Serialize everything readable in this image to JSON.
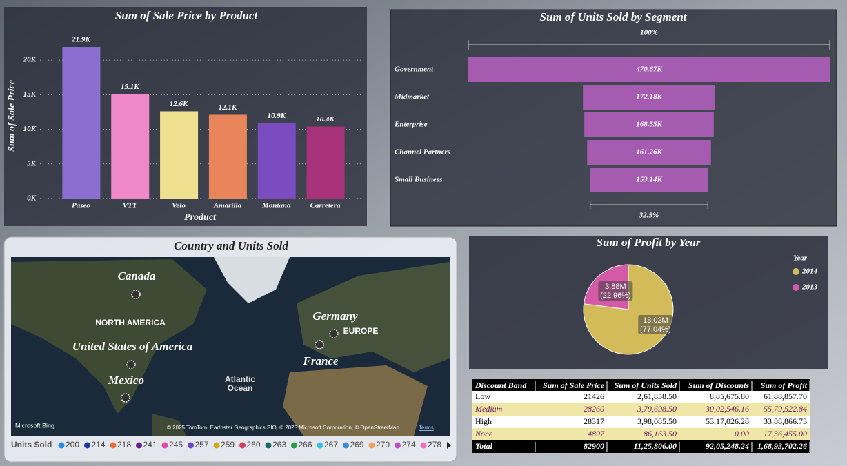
{
  "chart_data": [
    {
      "type": "bar",
      "title": "Sum of Sale Price by Product",
      "x_label": "Product",
      "y_label": "Sum of Sale Price",
      "categories": [
        "Paseo",
        "VTT",
        "Velo",
        "Amarilla",
        "Montana",
        "Carretera"
      ],
      "values": [
        21900,
        15100,
        12600,
        12100,
        10900,
        10400
      ],
      "value_labels": [
        "21.9K",
        "15.1K",
        "12.6K",
        "12.1K",
        "10.9K",
        "10.4K"
      ],
      "colors": [
        "#8b6fd0",
        "#ee88c8",
        "#efe08f",
        "#e8855a",
        "#7a4cc0",
        "#a8327a"
      ],
      "ylim": [
        0,
        23000
      ],
      "yticks": [
        {
          "value": 0,
          "label": "0K"
        },
        {
          "value": 5000,
          "label": "5K"
        },
        {
          "value": 10000,
          "label": "10K"
        },
        {
          "value": 15000,
          "label": "15K"
        },
        {
          "value": 20000,
          "label": "20K"
        }
      ],
      "grid": true
    },
    {
      "type": "funnel",
      "title": "Sum of Units Sold by Segment",
      "categories": [
        "Government",
        "Midmarket",
        "Enterprise",
        "Channel Partners",
        "Small Business"
      ],
      "values": [
        470670,
        172180,
        168550,
        161260,
        153140
      ],
      "value_labels": [
        "470.67K",
        "172.18K",
        "168.55K",
        "161.26K",
        "153.14K"
      ],
      "top_label": "100%",
      "bottom_label": "32.5%",
      "color": "#a55cb0"
    },
    {
      "type": "pie",
      "title": "Sum of Profit by Year",
      "legend_title": "Year",
      "categories": [
        "2014",
        "2013"
      ],
      "values": [
        13020000,
        3880000
      ],
      "value_labels": [
        "13.02M",
        "3.88M"
      ],
      "percents": [
        77.04,
        22.96
      ],
      "percent_labels": [
        "(77.04%)",
        "(22.96%)"
      ],
      "colors": [
        "#d4bb5a",
        "#d45aa8"
      ]
    }
  ],
  "map": {
    "title": "Country and Units Sold",
    "places": [
      "Canada",
      "United States of America",
      "Mexico",
      "Germany",
      "France"
    ],
    "regions": [
      "NORTH AMERICA",
      "EUROPE",
      "Atlantic",
      "Ocean"
    ],
    "provider": "Microsoft Bing",
    "attribution": "© 2025 TomTom, Earthstar Geographics SIO, © 2025 Microsoft Corporation, © OpenStreetMap",
    "terms": "Terms",
    "legend_title": "Units Sold",
    "legend": [
      {
        "value": 200,
        "color": "#2a8cf0"
      },
      {
        "value": 214,
        "color": "#1a3aa0"
      },
      {
        "value": 218,
        "color": "#e8703a"
      },
      {
        "value": 241,
        "color": "#6a1a8a"
      },
      {
        "value": 245,
        "color": "#e04aa0"
      },
      {
        "value": 257,
        "color": "#6a4ac0"
      },
      {
        "value": 259,
        "color": "#d4a81a"
      },
      {
        "value": 260,
        "color": "#d04060"
      },
      {
        "value": 263,
        "color": "#1a6a6a"
      },
      {
        "value": 266,
        "color": "#2aa040"
      },
      {
        "value": 267,
        "color": "#3ac0e0"
      },
      {
        "value": 269,
        "color": "#3a8ae0"
      },
      {
        "value": 270,
        "color": "#f0a060"
      },
      {
        "value": 274,
        "color": "#c050c0"
      },
      {
        "value": 278,
        "color": "#f070c0"
      }
    ]
  },
  "table": {
    "columns": [
      "Discount Band",
      "Sum of Sale Price",
      "Sum of Units Sold",
      "Sum of Discounts",
      "Sum of Profit"
    ],
    "rows": [
      [
        "Low",
        "21426",
        "2,61,858.50",
        "8,85,675.80",
        "61,88,857.70"
      ],
      [
        "Medium",
        "28260",
        "3,79,698.50",
        "30,02,546.16",
        "55,79,522.84"
      ],
      [
        "High",
        "28317",
        "3,98,085.50",
        "53,17,026.28",
        "33,88,866.73"
      ],
      [
        "None",
        "4897",
        "86,163.50",
        "0.00",
        "17,36,455.00"
      ]
    ],
    "total": [
      "Total",
      "82900",
      "11,25,806.00",
      "92,05,248.24",
      "1,68,93,702.26"
    ]
  }
}
